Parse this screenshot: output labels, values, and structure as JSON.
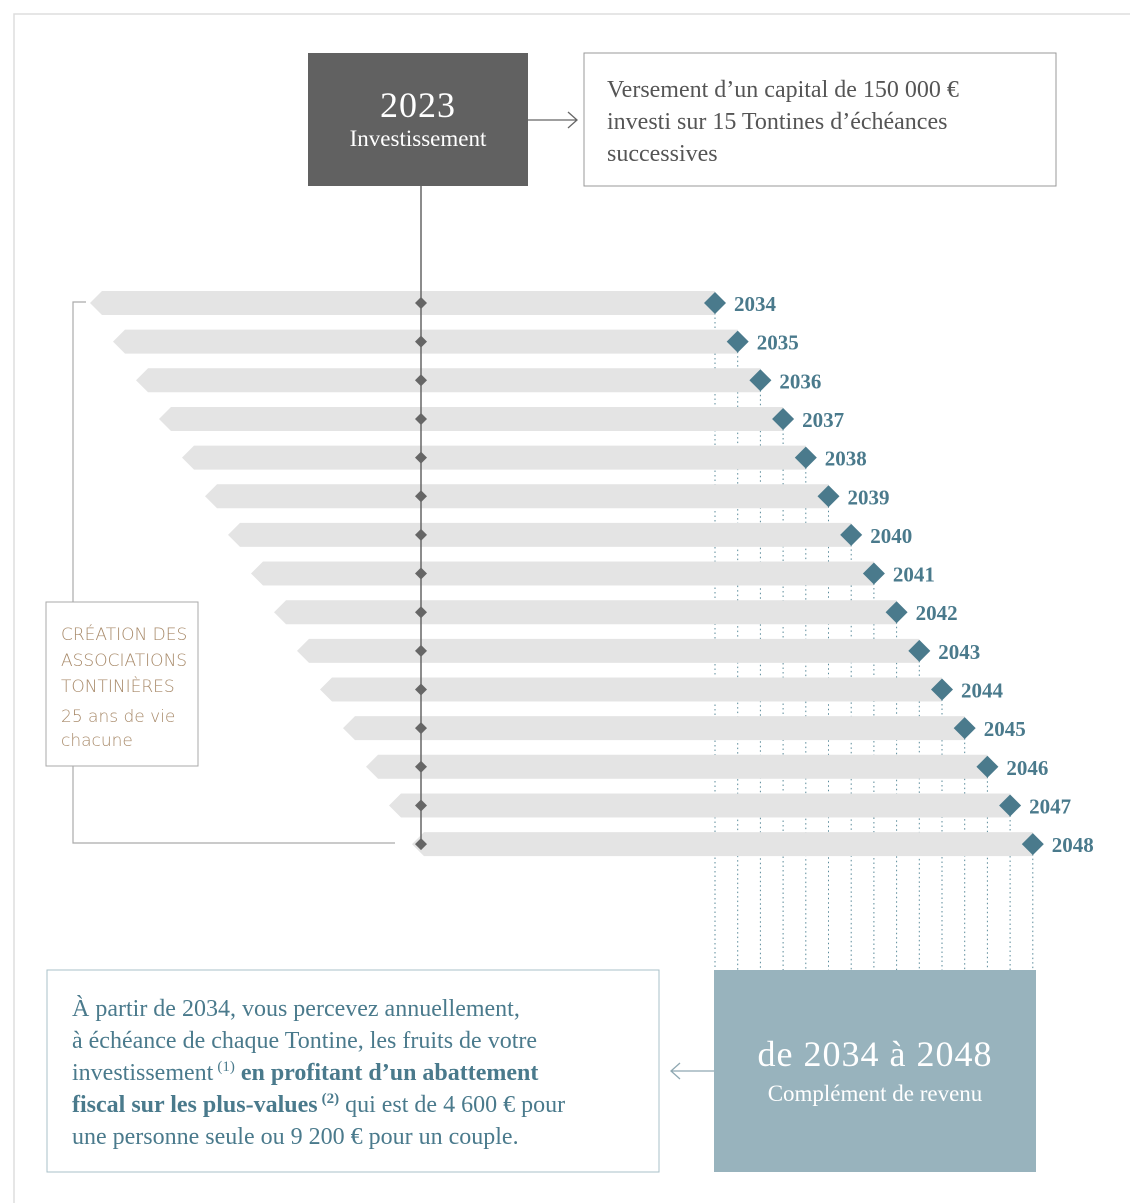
{
  "start": {
    "year": "2023",
    "label": "Investissement"
  },
  "description": {
    "lines": [
      "Versement d’un capital de 150 000 €",
      "investi sur 15 Tontines d’échéances",
      "successives"
    ]
  },
  "side_box": {
    "title_lines": [
      "CRÉATION DES",
      "ASSOCIATIONS",
      "TONTINIÈRES"
    ],
    "subtitle_lines": [
      "25 ans de vie",
      "chacune"
    ]
  },
  "tontines": [
    "2034",
    "2035",
    "2036",
    "2037",
    "2038",
    "2039",
    "2040",
    "2041",
    "2042",
    "2043",
    "2044",
    "2045",
    "2046",
    "2047",
    "2048"
  ],
  "result": {
    "period": "de 2034 à 2048",
    "label": "Complément de revenu"
  },
  "paragraph": {
    "lines": [
      [
        "À partir de 2034, vous percevez annuellement,"
      ],
      [
        "à échéance de chaque Tontine, les fruits de votre"
      ],
      [
        "investissement",
        "(1)",
        "en profitant d’un abattement"
      ],
      [
        "fiscal sur les plus-values",
        "(2)",
        "qui est de 4 600 € pour"
      ],
      [
        "une personne seule ou 9 200 € pour un couple."
      ]
    ]
  }
}
